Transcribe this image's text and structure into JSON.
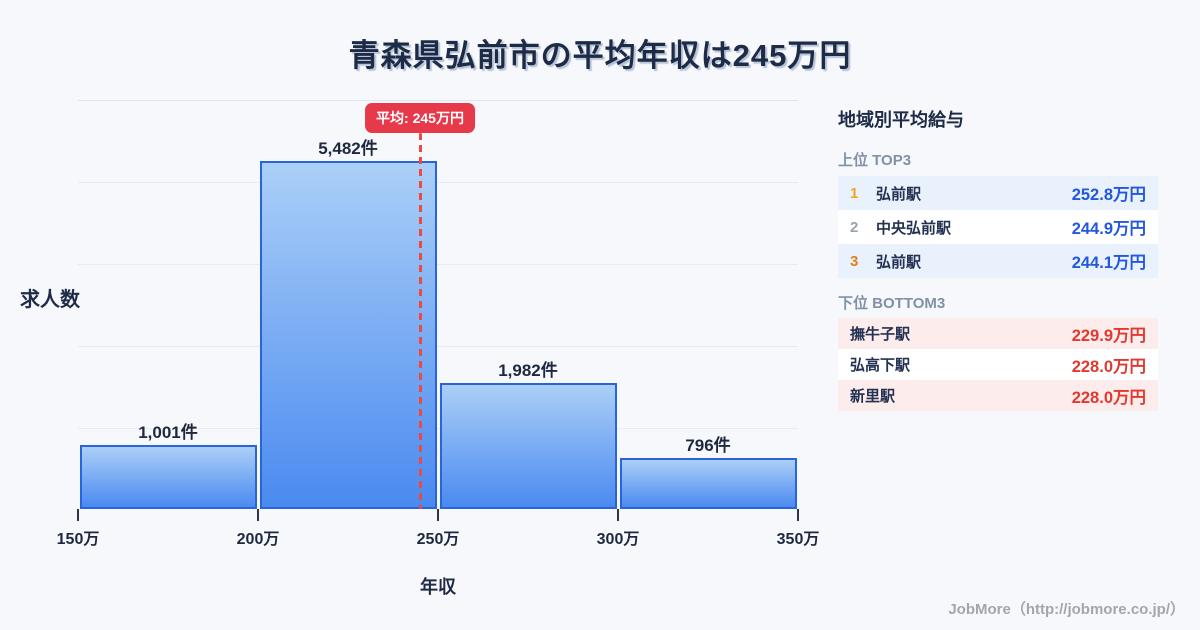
{
  "title": "青森県弘前市の平均年収は245万円",
  "chart_data": {
    "type": "bar",
    "subtype": "histogram",
    "title": "青森県弘前市の平均年収は245万円",
    "xlabel": "年収",
    "ylabel": "求人数",
    "bin_edges": [
      150,
      200,
      250,
      300,
      350
    ],
    "bin_edge_labels": [
      "150万",
      "200万",
      "250万",
      "300万",
      "350万"
    ],
    "values": [
      1001,
      5482,
      1982,
      796
    ],
    "value_labels": [
      "1,001件",
      "5,482件",
      "1,982件",
      "796件"
    ],
    "ylim": [
      0,
      6440
    ],
    "grid": "horizontal",
    "gridline_count": 5,
    "legend": "none",
    "average": {
      "value": 245,
      "label": "平均: 245万円"
    }
  },
  "colors": {
    "background": "#f7f8fb",
    "bar_top": "#abcff7",
    "bar_bottom": "#4a8af0",
    "bar_border": "#2a64da",
    "average_line": "#ea4a42",
    "average_badge_bg": "#e6394a",
    "top_value": "#2257de",
    "bottom_value": "#e2382f",
    "top_row_alt_bg": "#e9f1fc",
    "bottom_row_alt_bg": "#fdecec",
    "row_bg": "#ffffff",
    "rank_colors": [
      "#f0a81d",
      "#98a2ae",
      "#e2801d"
    ]
  },
  "panel": {
    "title": "地域別平均給与",
    "top": {
      "header": "上位 TOP3",
      "rows": [
        {
          "rank": "1",
          "name": "弘前駅",
          "value": "252.8万円"
        },
        {
          "rank": "2",
          "name": "中央弘前駅",
          "value": "244.9万円"
        },
        {
          "rank": "3",
          "name": "弘前駅",
          "value": "244.1万円"
        }
      ]
    },
    "bottom": {
      "header": "下位 BOTTOM3",
      "rows": [
        {
          "name": "撫牛子駅",
          "value": "229.9万円"
        },
        {
          "name": "弘高下駅",
          "value": "228.0万円"
        },
        {
          "name": "新里駅",
          "value": "228.0万円"
        }
      ]
    }
  },
  "footer": "JobMore（http://jobmore.co.jp/）"
}
